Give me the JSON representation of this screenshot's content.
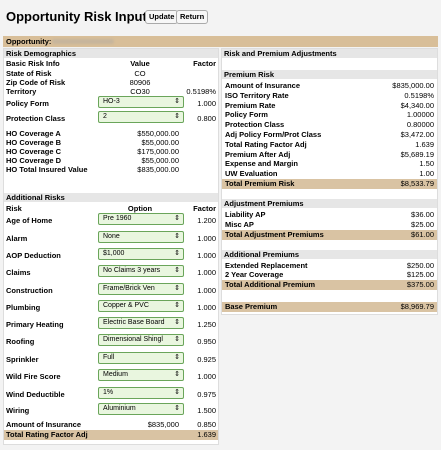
{
  "header": {
    "title": "Opportunity Risk Input",
    "buttons": [
      "Update",
      "Return"
    ]
  },
  "opportunity": {
    "label": "Opportunity:"
  },
  "risk_demographics": {
    "title": "Risk Demographics",
    "columns": [
      "Basic Risk Info",
      "Value",
      "Factor"
    ],
    "rows": [
      {
        "label": "State of Risk",
        "value": "CO"
      },
      {
        "label": "Zip Code of Risk",
        "value": "80906"
      },
      {
        "label": "Territory",
        "value": "CO30",
        "factor": "0.5198%"
      },
      {
        "label": "Policy Form",
        "select": "HO-3",
        "factor": "1.000"
      },
      {
        "label": "Protection Class",
        "select": "2",
        "factor": "0.800"
      },
      {
        "label": "HO Coverage A",
        "value": "$550,000.00"
      },
      {
        "label": "HO Coverage B",
        "value": "$55,000.00"
      },
      {
        "label": "HO Coverage C",
        "value": "$175,000.00"
      },
      {
        "label": "HO Coverage D",
        "value": "$55,000.00"
      },
      {
        "label": "HO Total Insured Value",
        "value": "$835,000.00"
      }
    ]
  },
  "additional_risks": {
    "title": "Additional Risks",
    "columns": [
      "Risk",
      "Option",
      "Factor"
    ],
    "rows": [
      {
        "label": "Age of Home",
        "select": "Pre 1960",
        "factor": "1.200"
      },
      {
        "label": "Alarm",
        "select": "None",
        "factor": "1.000"
      },
      {
        "label": "AOP Deduction",
        "select": "$1,000",
        "factor": "1.000"
      },
      {
        "label": "Claims",
        "select": "No Claims 3 years",
        "factor": "1.000"
      },
      {
        "label": "Construction",
        "select": "Frame/Brick Ven",
        "factor": "1.000"
      },
      {
        "label": "Plumbing",
        "select": "Copper & PVC",
        "factor": "1.000"
      },
      {
        "label": "Primary Heating",
        "select": "Electric Base Board",
        "factor": "1.250"
      },
      {
        "label": "Roofing",
        "select": "Dimensional Shingl",
        "factor": "0.950"
      },
      {
        "label": "Sprinkler",
        "select": "Full",
        "factor": "0.925"
      },
      {
        "label": "Wild Fire Score",
        "select": "Medium",
        "factor": "1.000"
      },
      {
        "label": "Wind Deductible",
        "select": "1%",
        "factor": "0.975"
      },
      {
        "label": "Wiring",
        "select": "Aluminium",
        "factor": "1.500"
      },
      {
        "label": "Amount of Insurance",
        "value": "$835,000",
        "factor": "0.850"
      }
    ],
    "total": {
      "label": "Total Rating Factor Adj",
      "factor": "1.639"
    }
  },
  "adjustments": {
    "title": "Risk and Premium Adjustments",
    "sections": [
      {
        "title": "Premium Risk",
        "rows": [
          {
            "label": "Amount of Insurance",
            "value": "$835,000.00"
          },
          {
            "label": "ISO Territory Rate",
            "value": "0.5198%"
          },
          {
            "label": "Premium Rate",
            "value": "$4,340.00"
          },
          {
            "label": "Policy Form",
            "value": "1.00000"
          },
          {
            "label": "Protection Class",
            "value": "0.80000"
          },
          {
            "label": "Adj Policy Form/Prot Class",
            "value": "$3,472.00"
          },
          {
            "label": "Total Rating Factor Adj",
            "value": "1.639"
          },
          {
            "label": "Premium After Adj",
            "value": "$5,689.19"
          },
          {
            "label": "Expense and Margin",
            "value": "1.50"
          },
          {
            "label": "UW Evaluation",
            "value": "1.00"
          }
        ],
        "total": {
          "label": "Total Premium Risk",
          "value": "$8,533.79"
        }
      },
      {
        "title": "Adjustment Premiums",
        "rows": [
          {
            "label": "Liability AP",
            "value": "$36.00"
          },
          {
            "label": "Misc AP",
            "value": "$25.00"
          }
        ],
        "total": {
          "label": "Total Adjustment Premiums",
          "value": "$61.00"
        }
      },
      {
        "title": "Additional Premiums",
        "rows": [
          {
            "label": "Extended Replacement",
            "value": "$250.00"
          },
          {
            "label": "2 Year Coverage",
            "value": "$125.00"
          }
        ],
        "total": {
          "label": "Total Additional Premium",
          "value": "$375.00"
        }
      }
    ],
    "base": {
      "label": "Base Premium",
      "value": "$8,969.79"
    }
  }
}
